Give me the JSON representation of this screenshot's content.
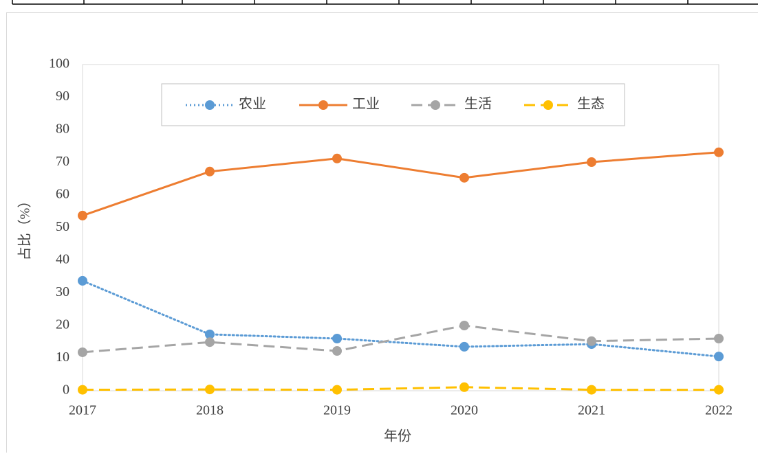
{
  "chart_data": {
    "type": "line",
    "categories": [
      "2017",
      "2018",
      "2019",
      "2020",
      "2021",
      "2022"
    ],
    "xlabel": "年份",
    "ylabel": "占比（%）",
    "ylim": [
      0,
      100
    ],
    "yticks": [
      0,
      10,
      20,
      30,
      40,
      50,
      60,
      70,
      80,
      90,
      100
    ],
    "grid": false,
    "legend": "top",
    "series": [
      {
        "name": "农业",
        "color": "#5b9bd5",
        "style": "dotted",
        "values": [
          33.7,
          17.3,
          16.0,
          13.5,
          14.3,
          10.5
        ]
      },
      {
        "name": "工业",
        "color": "#ed7d31",
        "style": "solid",
        "values": [
          53.7,
          67.2,
          71.2,
          65.3,
          70.1,
          73.1
        ]
      },
      {
        "name": "生活",
        "color": "#a5a5a5",
        "style": "dashed",
        "values": [
          11.8,
          14.9,
          12.2,
          20.0,
          15.2,
          16.0
        ]
      },
      {
        "name": "生态",
        "color": "#ffc000",
        "style": "dashed",
        "values": [
          0.3,
          0.4,
          0.3,
          1.1,
          0.3,
          0.3
        ]
      }
    ]
  }
}
